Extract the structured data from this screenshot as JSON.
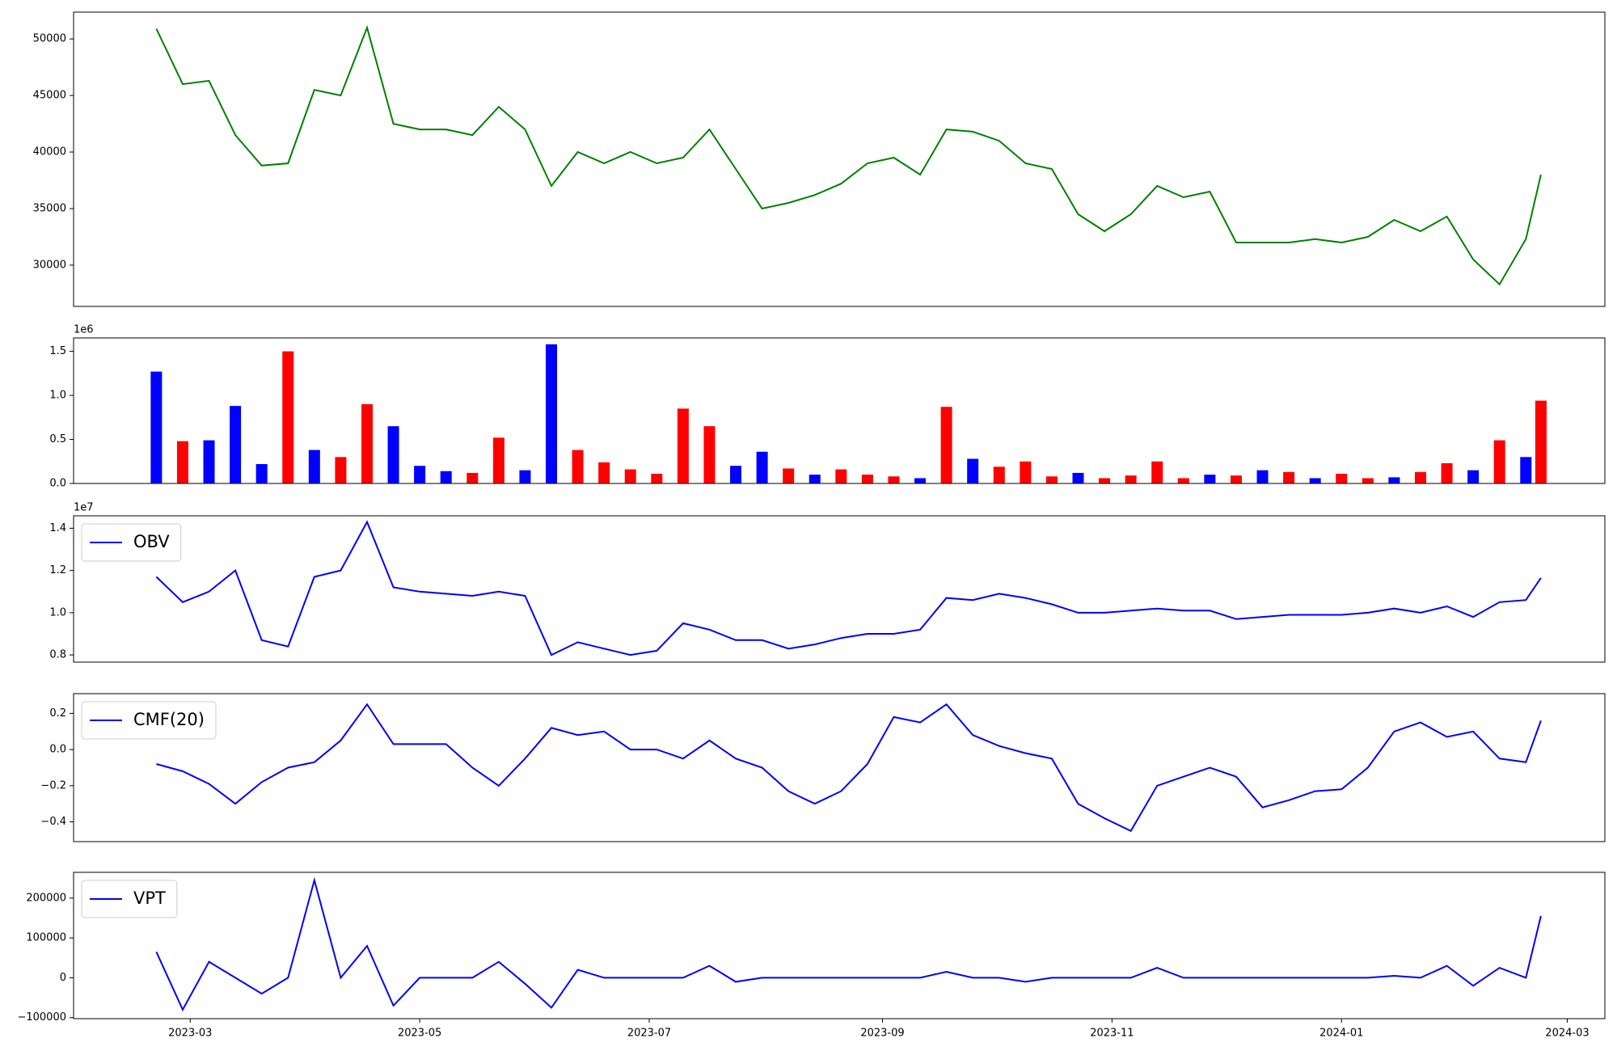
{
  "chart_data": [
    {
      "type": "line",
      "x": [
        "2023-02-20",
        "2023-02-27",
        "2023-03-06",
        "2023-03-13",
        "2023-03-20",
        "2023-03-27",
        "2023-04-03",
        "2023-04-10",
        "2023-04-17",
        "2023-04-24",
        "2023-05-01",
        "2023-05-08",
        "2023-05-15",
        "2023-05-22",
        "2023-05-29",
        "2023-06-05",
        "2023-06-12",
        "2023-06-19",
        "2023-06-26",
        "2023-07-03",
        "2023-07-10",
        "2023-07-17",
        "2023-07-24",
        "2023-07-31",
        "2023-08-07",
        "2023-08-14",
        "2023-08-21",
        "2023-08-28",
        "2023-09-04",
        "2023-09-11",
        "2023-09-18",
        "2023-09-25",
        "2023-10-02",
        "2023-10-09",
        "2023-10-16",
        "2023-10-23",
        "2023-10-30",
        "2023-11-06",
        "2023-11-13",
        "2023-11-20",
        "2023-11-27",
        "2023-12-04",
        "2023-12-11",
        "2023-12-18",
        "2023-12-25",
        "2024-01-01",
        "2024-01-08",
        "2024-01-15",
        "2024-01-22",
        "2024-01-29",
        "2024-02-05",
        "2024-02-12",
        "2024-02-19",
        "2024-02-23"
      ],
      "series": [
        {
          "color": "green",
          "values": [
            50900,
            46000,
            46300,
            41500,
            38800,
            39000,
            45500,
            45000,
            51000,
            42500,
            42000,
            42000,
            41500,
            44000,
            42000,
            37000,
            40000,
            39000,
            40000,
            39000,
            39500,
            42000,
            38500,
            35000,
            35500,
            36200,
            37200,
            39000,
            39500,
            38000,
            42000,
            41800,
            41000,
            39000,
            38500,
            34500,
            33000,
            34500,
            37000,
            36000,
            36500,
            32000,
            32000,
            32000,
            32300,
            32000,
            32500,
            34000,
            33000,
            34300,
            30500,
            28300,
            32300,
            38000
          ]
        }
      ],
      "xlim": [
        "2023-01-29",
        "2024-03-11"
      ],
      "ylim": [
        26350,
        52370
      ],
      "yticks": [
        30000,
        35000,
        40000,
        45000,
        50000
      ]
    },
    {
      "type": "bar",
      "x": [
        "2023-02-20",
        "2023-02-27",
        "2023-03-06",
        "2023-03-13",
        "2023-03-20",
        "2023-03-27",
        "2023-04-03",
        "2023-04-10",
        "2023-04-17",
        "2023-04-24",
        "2023-05-01",
        "2023-05-08",
        "2023-05-15",
        "2023-05-22",
        "2023-05-29",
        "2023-06-05",
        "2023-06-12",
        "2023-06-19",
        "2023-06-26",
        "2023-07-03",
        "2023-07-10",
        "2023-07-17",
        "2023-07-24",
        "2023-07-31",
        "2023-08-07",
        "2023-08-14",
        "2023-08-21",
        "2023-08-28",
        "2023-09-04",
        "2023-09-11",
        "2023-09-18",
        "2023-09-25",
        "2023-10-02",
        "2023-10-09",
        "2023-10-16",
        "2023-10-23",
        "2023-10-30",
        "2023-11-06",
        "2023-11-13",
        "2023-11-20",
        "2023-11-27",
        "2023-12-04",
        "2023-12-11",
        "2023-12-18",
        "2023-12-25",
        "2024-01-01",
        "2024-01-08",
        "2024-01-15",
        "2024-01-22",
        "2024-01-29",
        "2024-02-05",
        "2024-02-12",
        "2024-02-19",
        "2024-02-23"
      ],
      "values": [
        1270000,
        480000,
        490000,
        880000,
        220000,
        1500000,
        380000,
        300000,
        900000,
        650000,
        200000,
        140000,
        120000,
        520000,
        150000,
        1580000,
        380000,
        240000,
        160000,
        110000,
        850000,
        650000,
        200000,
        360000,
        170000,
        100000,
        160000,
        100000,
        80000,
        60000,
        870000,
        280000,
        190000,
        250000,
        80000,
        120000,
        60000,
        90000,
        250000,
        60000,
        100000,
        90000,
        150000,
        130000,
        60000,
        110000,
        60000,
        70000,
        130000,
        230000,
        150000,
        490000,
        300000,
        940000
      ],
      "colors": [
        "blue",
        "red",
        "blue",
        "blue",
        "blue",
        "red",
        "blue",
        "red",
        "red",
        "blue",
        "blue",
        "blue",
        "red",
        "red",
        "blue",
        "blue",
        "red",
        "red",
        "red",
        "red",
        "red",
        "red",
        "blue",
        "blue",
        "red",
        "blue",
        "red",
        "red",
        "red",
        "blue",
        "red",
        "blue",
        "red",
        "red",
        "red",
        "blue",
        "red",
        "red",
        "red",
        "red",
        "blue",
        "red",
        "blue",
        "red",
        "blue",
        "red",
        "red",
        "blue",
        "red",
        "red",
        "blue",
        "red",
        "blue",
        "red"
      ],
      "xlim": [
        "2023-01-29",
        "2024-03-11"
      ],
      "ylim": [
        0,
        1652000
      ],
      "yticks": [
        {
          "value": 0,
          "label": "0.0"
        },
        {
          "value": 500000,
          "label": "0.5"
        },
        {
          "value": 1000000,
          "label": "1.0"
        },
        {
          "value": 1500000,
          "label": "1.5"
        }
      ],
      "offset_label": "1e6"
    },
    {
      "type": "line",
      "x": [
        "2023-02-20",
        "2023-02-27",
        "2023-03-06",
        "2023-03-13",
        "2023-03-20",
        "2023-03-27",
        "2023-04-03",
        "2023-04-10",
        "2023-04-17",
        "2023-04-24",
        "2023-05-01",
        "2023-05-08",
        "2023-05-15",
        "2023-05-22",
        "2023-05-29",
        "2023-06-05",
        "2023-06-12",
        "2023-06-19",
        "2023-06-26",
        "2023-07-03",
        "2023-07-10",
        "2023-07-17",
        "2023-07-24",
        "2023-07-31",
        "2023-08-07",
        "2023-08-14",
        "2023-08-21",
        "2023-08-28",
        "2023-09-04",
        "2023-09-11",
        "2023-09-18",
        "2023-09-25",
        "2023-10-02",
        "2023-10-09",
        "2023-10-16",
        "2023-10-23",
        "2023-10-30",
        "2023-11-06",
        "2023-11-13",
        "2023-11-20",
        "2023-11-27",
        "2023-12-04",
        "2023-12-11",
        "2023-12-18",
        "2023-12-25",
        "2024-01-01",
        "2024-01-08",
        "2024-01-15",
        "2024-01-22",
        "2024-01-29",
        "2024-02-05",
        "2024-02-12",
        "2024-02-19",
        "2024-02-23"
      ],
      "series": [
        {
          "name": "OBV",
          "color": "blue",
          "values": [
            11700000,
            10500000,
            11000000,
            12000000,
            8700000,
            8400000,
            11700000,
            12000000,
            14300000,
            11200000,
            11000000,
            10900000,
            10800000,
            11000000,
            10800000,
            8000000,
            8600000,
            8300000,
            8000000,
            8200000,
            9500000,
            9200000,
            8700000,
            8700000,
            8300000,
            8500000,
            8800000,
            9000000,
            9000000,
            9200000,
            10700000,
            10600000,
            10900000,
            10700000,
            10400000,
            10000000,
            10000000,
            10100000,
            10200000,
            10100000,
            10100000,
            9700000,
            9800000,
            9900000,
            9900000,
            9900000,
            10000000,
            10200000,
            10000000,
            10300000,
            9800000,
            10500000,
            10600000,
            11650000
          ]
        }
      ],
      "xlim": [
        "2023-01-29",
        "2024-03-11"
      ],
      "ylim": [
        7660000,
        14590000
      ],
      "yticks": [
        {
          "value": 8000000,
          "label": "0.8"
        },
        {
          "value": 10000000,
          "label": "1.0"
        },
        {
          "value": 12000000,
          "label": "1.2"
        },
        {
          "value": 14000000,
          "label": "1.4"
        }
      ],
      "offset_label": "1e7",
      "legend": "upper left"
    },
    {
      "type": "line",
      "x": [
        "2023-02-20",
        "2023-02-27",
        "2023-03-06",
        "2023-03-13",
        "2023-03-20",
        "2023-03-27",
        "2023-04-03",
        "2023-04-10",
        "2023-04-17",
        "2023-04-24",
        "2023-05-01",
        "2023-05-08",
        "2023-05-15",
        "2023-05-22",
        "2023-05-29",
        "2023-06-05",
        "2023-06-12",
        "2023-06-19",
        "2023-06-26",
        "2023-07-03",
        "2023-07-10",
        "2023-07-17",
        "2023-07-24",
        "2023-07-31",
        "2023-08-07",
        "2023-08-14",
        "2023-08-21",
        "2023-08-28",
        "2023-09-04",
        "2023-09-11",
        "2023-09-18",
        "2023-09-25",
        "2023-10-02",
        "2023-10-09",
        "2023-10-16",
        "2023-10-23",
        "2023-10-30",
        "2023-11-06",
        "2023-11-13",
        "2023-11-20",
        "2023-11-27",
        "2023-12-04",
        "2023-12-11",
        "2023-12-18",
        "2023-12-25",
        "2024-01-01",
        "2024-01-08",
        "2024-01-15",
        "2024-01-22",
        "2024-01-29",
        "2024-02-05",
        "2024-02-12",
        "2024-02-19",
        "2024-02-23"
      ],
      "series": [
        {
          "name": "CMF(20)",
          "color": "blue",
          "values": [
            -0.08,
            -0.12,
            -0.19,
            -0.3,
            -0.18,
            -0.1,
            -0.07,
            0.05,
            0.25,
            0.03,
            0.03,
            0.03,
            -0.1,
            -0.2,
            -0.05,
            0.12,
            0.08,
            0.1,
            0.0,
            0.0,
            -0.05,
            0.05,
            -0.05,
            -0.1,
            -0.23,
            -0.3,
            -0.23,
            -0.08,
            0.18,
            0.15,
            0.25,
            0.08,
            0.02,
            -0.02,
            -0.05,
            -0.3,
            -0.38,
            -0.45,
            -0.2,
            -0.15,
            -0.1,
            -0.15,
            -0.32,
            -0.28,
            -0.23,
            -0.22,
            -0.1,
            0.1,
            0.15,
            0.07,
            0.1,
            -0.05,
            -0.07,
            0.16
          ]
        }
      ],
      "xlim": [
        "2023-01-29",
        "2024-03-11"
      ],
      "ylim": [
        -0.509,
        0.309
      ],
      "yticks": [
        {
          "value": -0.4,
          "label": "−0.4"
        },
        {
          "value": -0.2,
          "label": "−0.2"
        },
        {
          "value": 0,
          "label": "0.0"
        },
        0.2
      ],
      "legend": "upper left"
    },
    {
      "type": "line",
      "x": [
        "2023-02-20",
        "2023-02-27",
        "2023-03-06",
        "2023-03-13",
        "2023-03-20",
        "2023-03-27",
        "2023-04-03",
        "2023-04-10",
        "2023-04-17",
        "2023-04-24",
        "2023-05-01",
        "2023-05-08",
        "2023-05-15",
        "2023-05-22",
        "2023-05-29",
        "2023-06-05",
        "2023-06-12",
        "2023-06-19",
        "2023-06-26",
        "2023-07-03",
        "2023-07-10",
        "2023-07-17",
        "2023-07-24",
        "2023-07-31",
        "2023-08-07",
        "2023-08-14",
        "2023-08-21",
        "2023-08-28",
        "2023-09-04",
        "2023-09-11",
        "2023-09-18",
        "2023-09-25",
        "2023-10-02",
        "2023-10-09",
        "2023-10-16",
        "2023-10-23",
        "2023-10-30",
        "2023-11-06",
        "2023-11-13",
        "2023-11-20",
        "2023-11-27",
        "2023-12-04",
        "2023-12-11",
        "2023-12-18",
        "2023-12-25",
        "2024-01-01",
        "2024-01-08",
        "2024-01-15",
        "2024-01-22",
        "2024-01-29",
        "2024-02-05",
        "2024-02-12",
        "2024-02-19",
        "2024-02-23"
      ],
      "series": [
        {
          "name": "VPT",
          "color": "blue",
          "values": [
            65000,
            -80000,
            40000,
            0,
            -40000,
            0,
            245000,
            0,
            80000,
            -70000,
            0,
            0,
            0,
            40000,
            -15000,
            -75000,
            20000,
            0,
            0,
            0,
            0,
            30000,
            -10000,
            0,
            0,
            0,
            0,
            0,
            0,
            0,
            15000,
            0,
            0,
            -10000,
            0,
            0,
            0,
            0,
            25000,
            0,
            0,
            0,
            0,
            0,
            0,
            0,
            0,
            5000,
            0,
            30000,
            -20000,
            25000,
            0,
            155000
          ]
        }
      ],
      "xlim": [
        "2023-01-29",
        "2024-03-11"
      ],
      "ylim": [
        -102600,
        264650
      ],
      "yticks": [
        {
          "value": -100000,
          "label": "−100000"
        },
        0,
        100000,
        200000
      ],
      "xticks": [
        {
          "value": "2023-03-01",
          "label": "2023-03"
        },
        {
          "value": "2023-05-01",
          "label": "2023-05"
        },
        {
          "value": "2023-07-01",
          "label": "2023-07"
        },
        {
          "value": "2023-09-01",
          "label": "2023-09"
        },
        {
          "value": "2023-11-01",
          "label": "2023-11"
        },
        {
          "value": "2024-01-01",
          "label": "2024-01"
        },
        {
          "value": "2024-03-01",
          "label": "2024-03"
        }
      ],
      "legend": "upper left"
    }
  ]
}
